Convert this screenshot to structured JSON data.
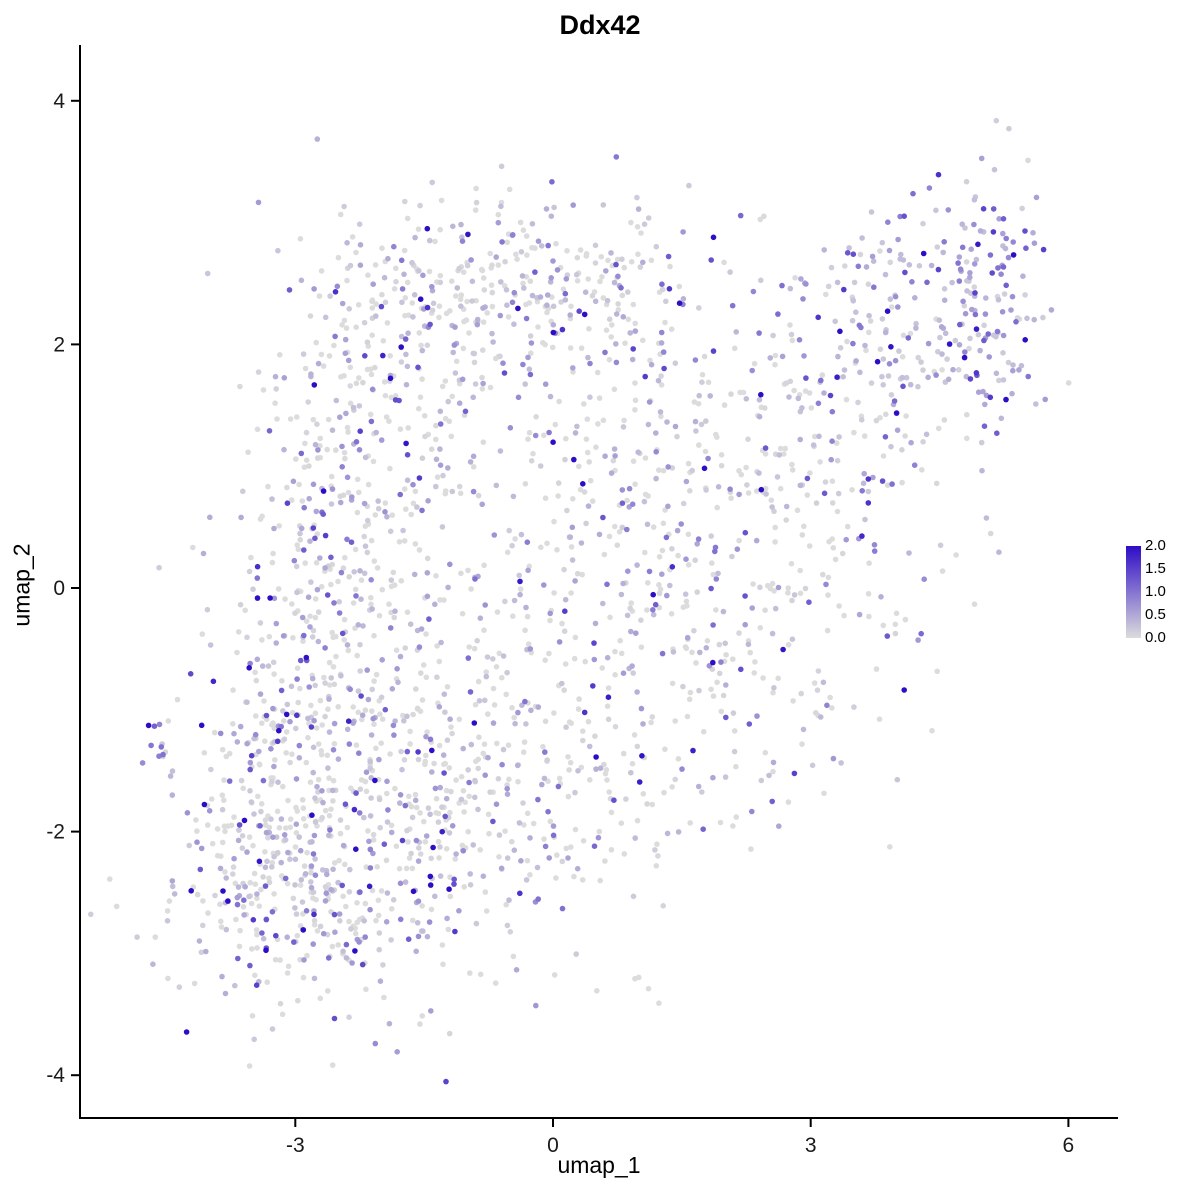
{
  "chart_data": {
    "type": "scatter",
    "title": "Ddx42",
    "xlabel": "umap_1",
    "ylabel": "umap_2",
    "xlim": [
      -5.5,
      6.55
    ],
    "ylim": [
      -4.35,
      4.45
    ],
    "x_ticks": [
      -3,
      0,
      3,
      6
    ],
    "x_tick_labels": [
      "-3",
      "0",
      "3",
      "6"
    ],
    "y_ticks": [
      -4,
      -2,
      0,
      2,
      4
    ],
    "y_tick_labels": [
      "-4",
      "-2",
      "0",
      "2",
      "4"
    ],
    "grid": false,
    "legend": {
      "position": "right",
      "ticks": [
        2.0,
        1.5,
        1.0,
        0.5,
        0.0
      ],
      "labels": [
        "2.0",
        "1.5",
        "1.0",
        "0.5",
        "0.0"
      ],
      "min": 0,
      "max": 2,
      "color_low": "#DCDCDC",
      "color_high": "#2F0CC6"
    },
    "style": {
      "background": "#FFFFFF",
      "axis_color": "#000000",
      "tick_color": "#1A1A1A"
    },
    "point_radius": 2.8,
    "seed": 42,
    "expression_model": {
      "zero_fraction": 0.42,
      "mean": 0.55,
      "max": 2
    },
    "clusters": [
      {
        "cx": -2.9,
        "cy": -2.4,
        "sx": 0.85,
        "sy": 0.55,
        "n": 400,
        "bias": 0
      },
      {
        "cx": -3.2,
        "cy": -1.2,
        "sx": 0.55,
        "sy": 0.45,
        "n": 150,
        "bias": 0
      },
      {
        "cx": -2.7,
        "cy": 0.1,
        "sx": 0.6,
        "sy": 0.8,
        "n": 230,
        "bias": 0
      },
      {
        "cx": -1.9,
        "cy": 1.4,
        "sx": 0.7,
        "sy": 0.7,
        "n": 190,
        "bias": 0
      },
      {
        "cx": -1.2,
        "cy": 2.45,
        "sx": 0.95,
        "sy": 0.4,
        "n": 210,
        "bias": 0
      },
      {
        "cx": 0.2,
        "cy": 2.55,
        "sx": 0.75,
        "sy": 0.35,
        "n": 110,
        "bias": 0
      },
      {
        "cx": -1.4,
        "cy": -1.4,
        "sx": 0.8,
        "sy": 0.9,
        "n": 220,
        "bias": 0
      },
      {
        "cx": 0.0,
        "cy": -1.6,
        "sx": 1.0,
        "sy": 0.8,
        "n": 240,
        "bias": 0
      },
      {
        "cx": 0.4,
        "cy": 0.6,
        "sx": 1.0,
        "sy": 1.0,
        "n": 240,
        "bias": 0
      },
      {
        "cx": 1.9,
        "cy": 1.1,
        "sx": 0.9,
        "sy": 0.8,
        "n": 200,
        "bias": 0
      },
      {
        "cx": 2.2,
        "cy": -0.7,
        "sx": 0.7,
        "sy": 0.7,
        "n": 90,
        "bias": 0
      },
      {
        "cx": 3.5,
        "cy": 0.6,
        "sx": 0.7,
        "sy": 0.9,
        "n": 120,
        "bias": 0
      },
      {
        "cx": 4.2,
        "cy": 2.1,
        "sx": 0.75,
        "sy": 0.5,
        "n": 180,
        "bias": 0.15
      },
      {
        "cx": 5.0,
        "cy": 2.55,
        "sx": 0.35,
        "sy": 0.5,
        "n": 100,
        "bias": 0.4
      },
      {
        "cx": -4.62,
        "cy": -1.3,
        "sx": 0.1,
        "sy": 0.13,
        "n": 11,
        "bias": 0.5
      }
    ]
  }
}
